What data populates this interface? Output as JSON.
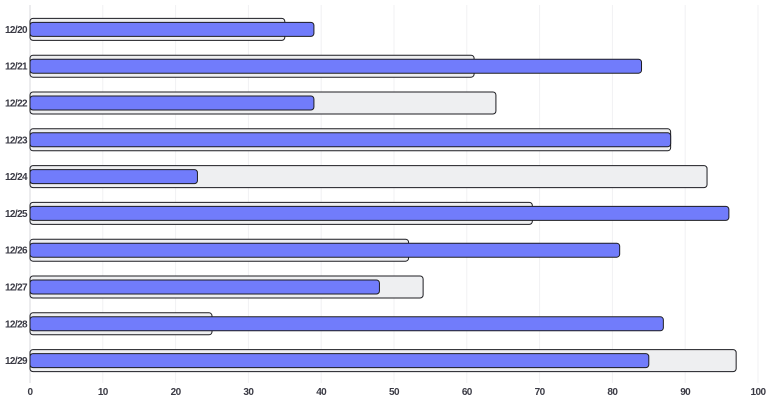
{
  "chart_data": {
    "type": "bar",
    "orientation": "horizontal",
    "categories": [
      "12/20",
      "12/21",
      "12/22",
      "12/23",
      "12/24",
      "12/25",
      "12/26",
      "12/27",
      "12/28",
      "12/29"
    ],
    "series": [
      {
        "values": [
          35,
          61,
          64,
          88,
          93,
          69,
          52,
          54,
          25,
          97
        ],
        "color": "#eeeff1",
        "role": "background"
      },
      {
        "values": [
          39,
          84,
          39,
          88,
          23,
          96,
          81,
          48,
          87,
          85
        ],
        "color": "#717cfb",
        "role": "foreground"
      }
    ],
    "xlim": [
      0,
      100
    ],
    "xticks": [
      "0",
      "10",
      "20",
      "30",
      "40",
      "50",
      "60",
      "70",
      "80",
      "90",
      "100"
    ],
    "grid": true,
    "legend": "none"
  }
}
